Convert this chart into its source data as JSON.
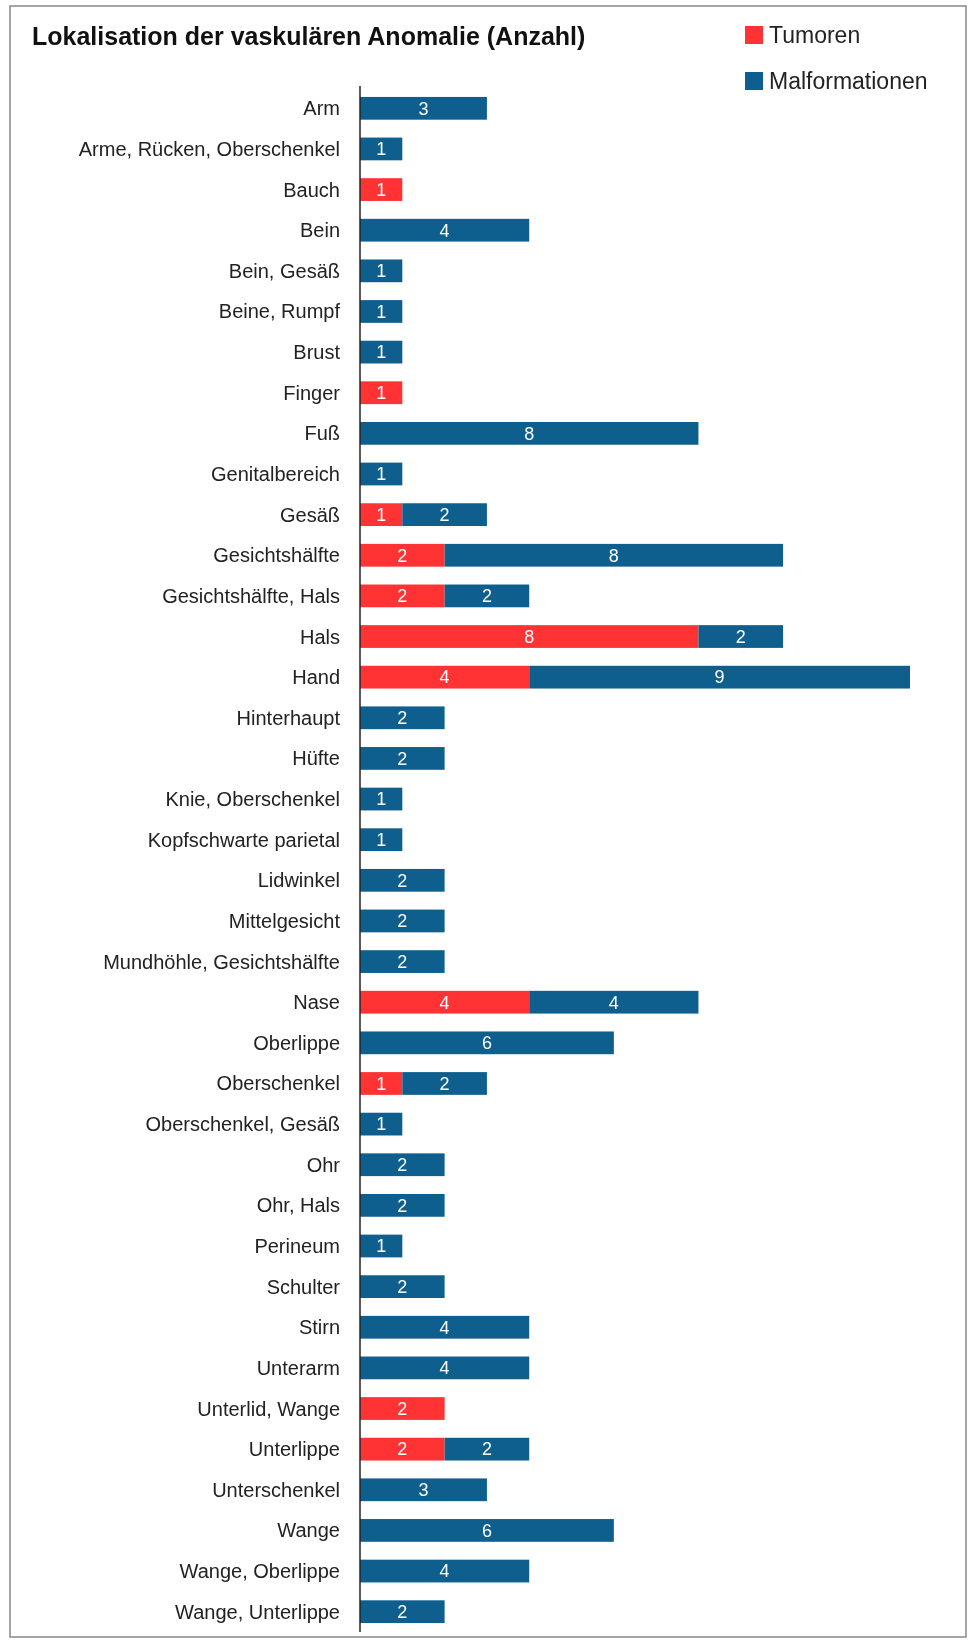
{
  "chart_data": {
    "type": "bar",
    "orientation": "horizontal",
    "stacked": true,
    "title": "Lokalisation der vaskulären Anomalie (Anzahl)",
    "legend": "top right",
    "data_labels": true,
    "categories": [
      "Arm",
      "Arme, Rücken, Oberschenkel",
      "Bauch",
      "Bein",
      "Bein, Gesäß",
      "Beine, Rumpf",
      "Brust",
      "Finger",
      "Fuß",
      "Genitalbereich",
      "Gesäß",
      "Gesichtshälfte",
      "Gesichtshälfte, Hals",
      "Hals",
      "Hand",
      "Hinterhaupt",
      "Hüfte",
      "Knie, Oberschenkel",
      "Kopfschwarte parietal",
      "Lidwinkel",
      "Mittelgesicht",
      "Mundhöhle, Gesichtshälfte",
      "Nase",
      "Oberlippe",
      "Oberschenkel",
      "Oberschenkel, Gesäß",
      "Ohr",
      "Ohr, Hals",
      "Perineum",
      "Schulter",
      "Stirn",
      "Unterarm",
      "Unterlid, Wange",
      "Unterlippe",
      "Unterschenkel",
      "Wange",
      "Wange, Oberlippe",
      "Wange, Unterlippe"
    ],
    "series": [
      {
        "name": "Tumoren",
        "color": "#ff3333",
        "values": [
          null,
          null,
          1,
          null,
          null,
          null,
          null,
          1,
          null,
          null,
          1,
          2,
          2,
          8,
          4,
          null,
          null,
          null,
          null,
          null,
          null,
          null,
          4,
          null,
          1,
          null,
          null,
          null,
          null,
          null,
          null,
          null,
          2,
          2,
          null,
          null,
          null,
          null
        ]
      },
      {
        "name": "Malformationen",
        "color": "#0e5f8e",
        "values": [
          3,
          1,
          null,
          4,
          1,
          1,
          1,
          null,
          8,
          1,
          2,
          8,
          2,
          2,
          9,
          2,
          2,
          1,
          1,
          2,
          2,
          2,
          4,
          6,
          2,
          1,
          2,
          2,
          1,
          2,
          4,
          4,
          null,
          2,
          3,
          6,
          4,
          2
        ]
      }
    ]
  }
}
